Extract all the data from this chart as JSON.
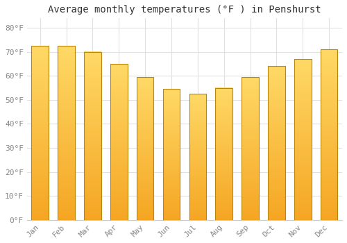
{
  "title": "Average monthly temperatures (°F ) in Penshurst",
  "months": [
    "Jan",
    "Feb",
    "Mar",
    "Apr",
    "May",
    "Jun",
    "Jul",
    "Aug",
    "Sep",
    "Oct",
    "Nov",
    "Dec"
  ],
  "values": [
    72.5,
    72.5,
    70,
    65,
    59.5,
    54.5,
    52.5,
    55,
    59.5,
    64,
    67,
    71
  ],
  "bar_color_bottom": "#F5A623",
  "bar_color_top": "#FFD966",
  "bar_edge_color": "#B8860B",
  "background_color": "#FFFFFF",
  "yticks": [
    0,
    10,
    20,
    30,
    40,
    50,
    60,
    70,
    80
  ],
  "ytick_labels": [
    "0°F",
    "10°F",
    "20°F",
    "30°F",
    "40°F",
    "50°F",
    "60°F",
    "70°F",
    "80°F"
  ],
  "ylim": [
    0,
    84
  ],
  "title_fontsize": 10,
  "tick_fontsize": 8,
  "grid_color": "#E0E0E0",
  "font_family": "monospace",
  "tick_color": "#888888"
}
